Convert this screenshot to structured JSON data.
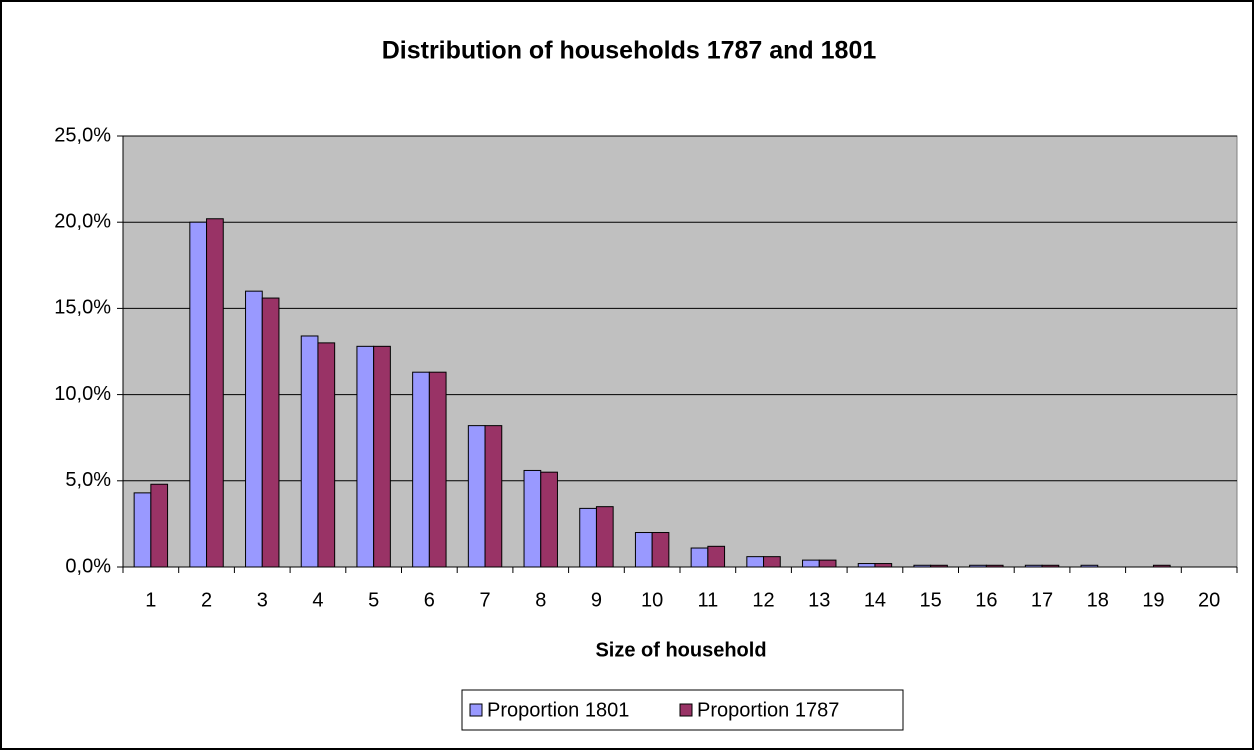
{
  "chart_data": {
    "type": "bar",
    "title": "Distribution of households 1787 and 1801",
    "x_label": "Size of household",
    "categories": [
      "1",
      "2",
      "3",
      "4",
      "5",
      "6",
      "7",
      "8",
      "9",
      "10",
      "11",
      "12",
      "13",
      "14",
      "15",
      "16",
      "17",
      "18",
      "19",
      "20"
    ],
    "series": [
      {
        "name": "Proportion 1801",
        "color": "#9999ff",
        "values": [
          4.3,
          20.0,
          16.0,
          13.4,
          12.8,
          11.3,
          8.2,
          5.6,
          3.4,
          2.0,
          1.1,
          0.6,
          0.4,
          0.2,
          0.1,
          0.1,
          0.1,
          0.1,
          0,
          0
        ]
      },
      {
        "name": "Proportion 1787",
        "color": "#993366",
        "values": [
          4.8,
          20.2,
          15.6,
          13.0,
          12.8,
          11.3,
          8.2,
          5.5,
          3.5,
          2.0,
          1.2,
          0.6,
          0.4,
          0.2,
          0.1,
          0.1,
          0.1,
          0,
          0.1,
          0
        ]
      }
    ],
    "ylim": [
      0,
      25
    ],
    "yticks": [
      {
        "value": 0,
        "label": "0,0%"
      },
      {
        "value": 5,
        "label": "5,0%"
      },
      {
        "value": 10,
        "label": "10,0%"
      },
      {
        "value": 15,
        "label": "15,0%"
      },
      {
        "value": 20,
        "label": "20,0%"
      },
      {
        "value": 25,
        "label": "25,0%"
      }
    ],
    "grid": true,
    "plot_background": "#c0c0c0",
    "legend": "bottom"
  }
}
